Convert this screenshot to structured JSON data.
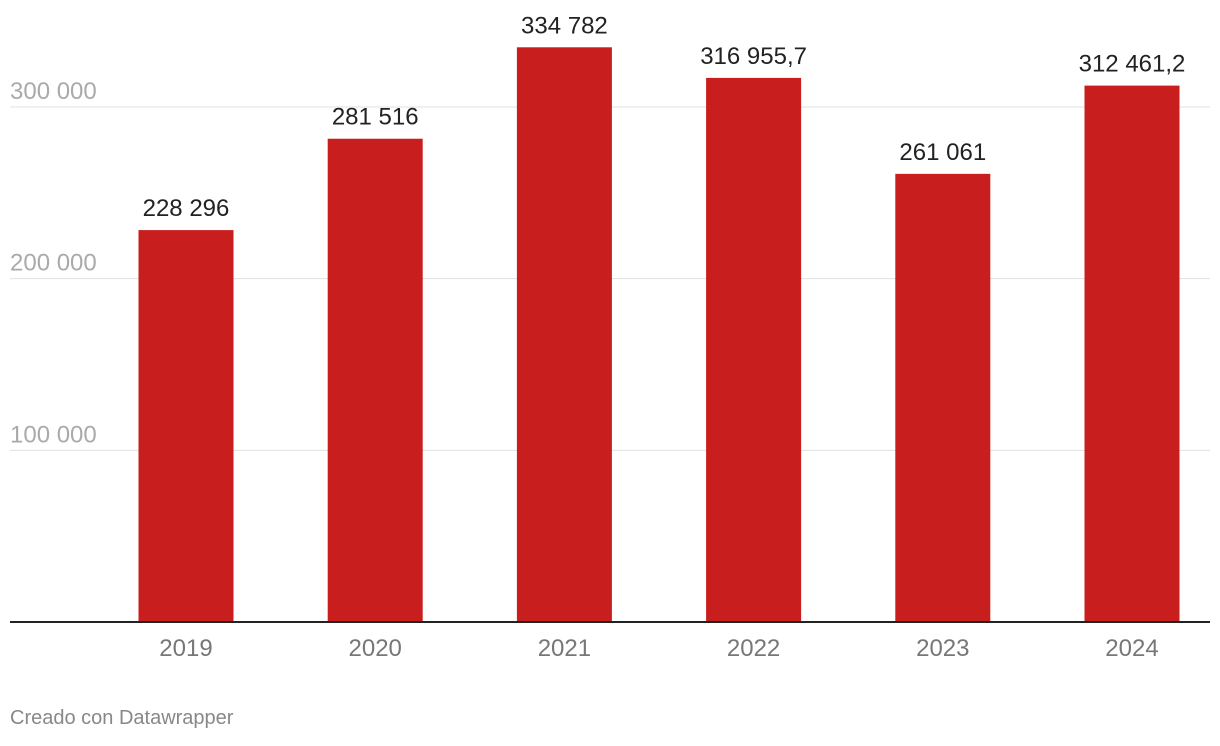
{
  "chart_data": {
    "type": "bar",
    "categories": [
      "2019",
      "2020",
      "2021",
      "2022",
      "2023",
      "2024"
    ],
    "values": [
      228296,
      281516,
      334782,
      316955.7,
      261061,
      312461.2
    ],
    "value_labels": [
      "228 296",
      "281 516",
      "334 782",
      "316 955,7",
      "261 061",
      "312 461,2"
    ],
    "y_ticks": [
      100000,
      200000,
      300000
    ],
    "y_tick_labels": [
      "100 000",
      "200 000",
      "300 000"
    ],
    "ylim": [
      0,
      300000
    ],
    "grid": true,
    "colors": {
      "bar": "#c81e1e",
      "grid": "#e0e0e0",
      "baseline": "#222222"
    }
  },
  "footer": {
    "credit": "Creado con Datawrapper"
  }
}
